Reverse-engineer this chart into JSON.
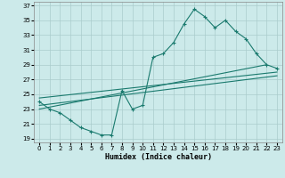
{
  "xlabel": "Humidex (Indice chaleur)",
  "background_color": "#cceaea",
  "grid_color": "#aacccc",
  "line_color": "#1a7a6e",
  "xlim": [
    -0.5,
    23.5
  ],
  "ylim": [
    18.5,
    37.5
  ],
  "xticks": [
    0,
    1,
    2,
    3,
    4,
    5,
    6,
    7,
    8,
    9,
    10,
    11,
    12,
    13,
    14,
    15,
    16,
    17,
    18,
    19,
    20,
    21,
    22,
    23
  ],
  "yticks": [
    19,
    21,
    23,
    25,
    27,
    29,
    31,
    33,
    35,
    37
  ],
  "line1_x": [
    0,
    1,
    2,
    3,
    4,
    5,
    6,
    7,
    8,
    9,
    10,
    11,
    12,
    13,
    14,
    15,
    16,
    17,
    18,
    19,
    20,
    21,
    22,
    23
  ],
  "line1_y": [
    24,
    23,
    22.5,
    21.5,
    20.5,
    20,
    19.5,
    19.5,
    25.5,
    23,
    23.5,
    30,
    30.5,
    32,
    34.5,
    36.5,
    35.5,
    34,
    35,
    33.5,
    32.5,
    30.5,
    29,
    28.5
  ],
  "line2_x": [
    0,
    22
  ],
  "line2_y": [
    23,
    29
  ],
  "line3_x": [
    0,
    23
  ],
  "line3_y": [
    24.5,
    28
  ],
  "line4_x": [
    0,
    23
  ],
  "line4_y": [
    23.5,
    27.5
  ]
}
